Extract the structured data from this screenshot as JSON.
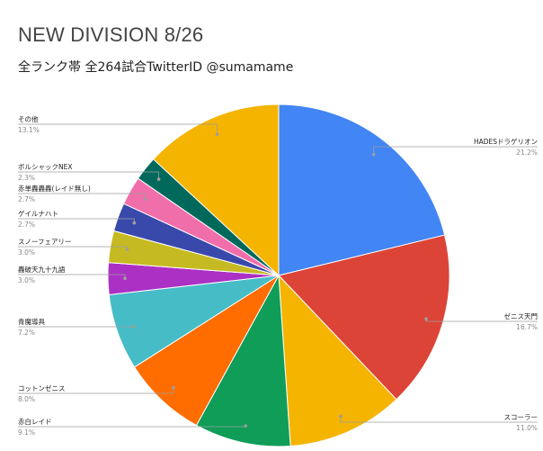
{
  "header": {
    "title": "NEW DIVISION 8/26",
    "subtitle": "全ランク帯 全264試合TwitterID @sumamame"
  },
  "chart_data": {
    "type": "pie",
    "title": "NEW DIVISION 8/26",
    "subtitle": "全ランク帯 全264試合TwitterID @sumamame",
    "slices": [
      {
        "label": "HADESドラゲリオン",
        "value": 21.2,
        "pct_text": "21.2%",
        "color": "#4285F4"
      },
      {
        "label": "ゼニス天門",
        "value": 16.7,
        "pct_text": "16.7%",
        "color": "#DB4437"
      },
      {
        "label": "スコーラー",
        "value": 11.0,
        "pct_text": "11.0%",
        "color": "#F4B400"
      },
      {
        "label": "赤白レイド",
        "value": 9.1,
        "pct_text": "9.1%",
        "color": "#0F9D58"
      },
      {
        "label": "コットンゼニス",
        "value": 8.0,
        "pct_text": "8.0%",
        "color": "#FF6D01"
      },
      {
        "label": "青魔導具",
        "value": 7.2,
        "pct_text": "7.2%",
        "color": "#46BDC6"
      },
      {
        "label": "轟破天九十九語",
        "value": 3.0,
        "pct_text": "3.0%",
        "color": "#AB30C4"
      },
      {
        "label": "スノーフェアリー",
        "value": 3.0,
        "pct_text": "3.0%",
        "color": "#C6BA22"
      },
      {
        "label": "ゲイルナハト",
        "value": 2.7,
        "pct_text": "2.7%",
        "color": "#3949AB"
      },
      {
        "label": "赤単轟轟轟(レイド無し)",
        "value": 2.7,
        "pct_text": "2.7%",
        "color": "#F06EAA"
      },
      {
        "label": "ボルシャックNEX",
        "value": 2.3,
        "pct_text": "2.3%",
        "color": "#00695C"
      },
      {
        "label": "その他",
        "value": 13.1,
        "pct_text": "13.1%",
        "color": "#F4B400"
      }
    ],
    "legend": "outside labels with leader lines"
  }
}
